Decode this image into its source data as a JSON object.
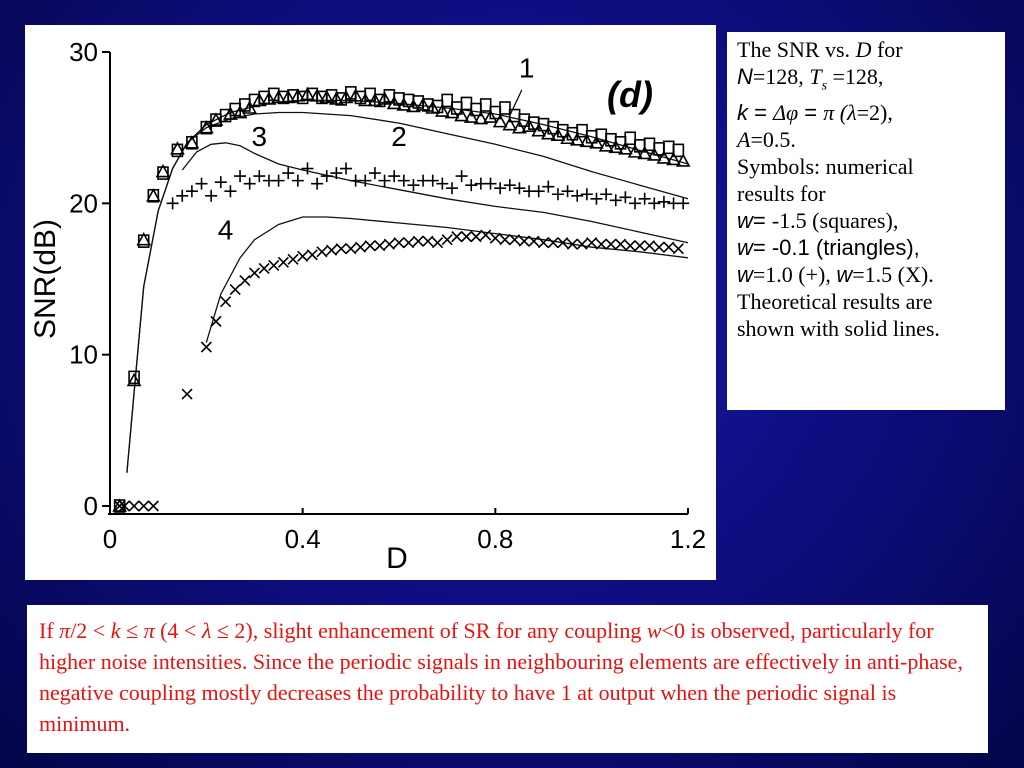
{
  "chart_data": {
    "type": "scatter",
    "panel_label": "(d)",
    "xlabel": "D",
    "ylabel": "SNR(dB)",
    "xlim": [
      0,
      1.2
    ],
    "ylim": [
      0,
      30
    ],
    "xticks": [
      "0",
      "0.4",
      "0.8",
      "1.2"
    ],
    "yticks": [
      "0",
      "10",
      "20",
      "30"
    ],
    "grid": false,
    "theory_lines": [
      {
        "name": "1",
        "x": [
          0.035,
          0.05,
          0.07,
          0.1,
          0.13,
          0.16,
          0.2,
          0.25,
          0.3,
          0.35,
          0.4,
          0.5,
          0.6,
          0.7,
          0.8,
          0.9,
          1.0,
          1.1,
          1.2
        ],
        "y": [
          2.2,
          7.5,
          14.5,
          19.5,
          22.3,
          24.0,
          25.2,
          26.0,
          26.4,
          26.7,
          26.8,
          26.8,
          26.6,
          26.3,
          25.9,
          25.2,
          24.4,
          23.5,
          22.6
        ]
      },
      {
        "name": "2",
        "x": [
          0.035,
          0.05,
          0.07,
          0.1,
          0.13,
          0.16,
          0.2,
          0.25,
          0.3,
          0.35,
          0.4,
          0.5,
          0.6,
          0.7,
          0.8,
          0.9,
          1.0,
          1.1,
          1.2
        ],
        "y": [
          2.2,
          7.5,
          14.5,
          19.5,
          22.3,
          24.0,
          25.0,
          25.6,
          25.9,
          26.0,
          26.0,
          25.8,
          25.3,
          24.6,
          23.9,
          23.1,
          22.1,
          21.2,
          20.3
        ]
      },
      {
        "name": "3",
        "x": [
          0.15,
          0.18,
          0.21,
          0.24,
          0.27,
          0.3,
          0.35,
          0.4,
          0.5,
          0.6,
          0.7,
          0.8,
          0.9,
          1.0,
          1.1,
          1.2
        ],
        "y": [
          22.2,
          23.4,
          23.9,
          24.0,
          23.8,
          23.3,
          22.6,
          22.2,
          21.5,
          20.9,
          20.3,
          19.8,
          19.4,
          18.8,
          18.1,
          17.4
        ]
      },
      {
        "name": "4",
        "x": [
          0.2,
          0.23,
          0.27,
          0.3,
          0.35,
          0.4,
          0.45,
          0.5,
          0.6,
          0.7,
          0.8,
          0.9,
          1.0,
          1.1,
          1.2
        ],
        "y": [
          10.8,
          14.0,
          16.4,
          17.6,
          18.6,
          19.1,
          19.1,
          19.0,
          18.7,
          18.4,
          18.0,
          17.6,
          17.1,
          16.8,
          16.4
        ]
      }
    ],
    "series": [
      {
        "name": "squares",
        "x": [
          0.02,
          0.05,
          0.07,
          0.09,
          0.11,
          0.14,
          0.17,
          0.2,
          0.22,
          0.24,
          0.26,
          0.28,
          0.3,
          0.32,
          0.34,
          0.36,
          0.38,
          0.4,
          0.42,
          0.44,
          0.46,
          0.48,
          0.5,
          0.52,
          0.54,
          0.56,
          0.58,
          0.6,
          0.62,
          0.64,
          0.66,
          0.68,
          0.7,
          0.72,
          0.74,
          0.76,
          0.78,
          0.8,
          0.82,
          0.84,
          0.86,
          0.88,
          0.9,
          0.92,
          0.94,
          0.96,
          0.98,
          1.0,
          1.02,
          1.04,
          1.06,
          1.08,
          1.1,
          1.12,
          1.14,
          1.16,
          1.18
        ],
        "y": [
          0,
          8.5,
          17.5,
          20.5,
          22,
          23.5,
          24,
          25,
          25.5,
          25.8,
          26.2,
          26.5,
          26.8,
          27,
          27.2,
          27,
          27.1,
          27,
          27.2,
          27,
          27.1,
          26.9,
          27.3,
          27,
          27.2,
          26.8,
          27.1,
          26.9,
          26.8,
          26.7,
          26.5,
          26.4,
          26.8,
          26.3,
          26.6,
          26.2,
          26.5,
          26,
          26.3,
          25.8,
          25.5,
          25.3,
          25.2,
          25.0,
          24.8,
          24.6,
          24.8,
          24.4,
          24.5,
          24.2,
          24.0,
          24.3,
          23.8,
          23.9,
          23.6,
          23.7,
          23.5
        ]
      },
      {
        "name": "triangles",
        "x": [
          0.02,
          0.05,
          0.07,
          0.09,
          0.11,
          0.14,
          0.17,
          0.2,
          0.22,
          0.25,
          0.27,
          0.29,
          0.31,
          0.33,
          0.35,
          0.37,
          0.39,
          0.41,
          0.43,
          0.45,
          0.47,
          0.49,
          0.51,
          0.53,
          0.55,
          0.57,
          0.59,
          0.61,
          0.63,
          0.65,
          0.67,
          0.69,
          0.71,
          0.73,
          0.75,
          0.77,
          0.79,
          0.81,
          0.83,
          0.85,
          0.87,
          0.89,
          0.91,
          0.93,
          0.95,
          0.97,
          0.99,
          1.01,
          1.03,
          1.05,
          1.07,
          1.09,
          1.11,
          1.13,
          1.15,
          1.17,
          1.19
        ],
        "y": [
          0,
          8.3,
          17.6,
          20.5,
          22.1,
          23.6,
          24,
          25,
          25.5,
          25.9,
          26,
          26.3,
          26.8,
          26.9,
          27,
          27,
          27.1,
          27.2,
          27.1,
          27,
          26.9,
          27,
          27.1,
          26.8,
          26.8,
          26.9,
          26.6,
          26.5,
          26.4,
          26.5,
          26.3,
          26.1,
          26,
          25.8,
          25.7,
          25.6,
          25.7,
          25.4,
          25.2,
          25,
          25.1,
          24.8,
          24.6,
          24.5,
          24.3,
          24.2,
          24.1,
          24.0,
          23.8,
          23.7,
          23.6,
          23.4,
          23.3,
          23.2,
          23.0,
          22.9,
          22.8
        ]
      },
      {
        "name": "plus",
        "x": [
          0.13,
          0.15,
          0.17,
          0.19,
          0.21,
          0.23,
          0.25,
          0.27,
          0.29,
          0.31,
          0.33,
          0.35,
          0.37,
          0.39,
          0.41,
          0.43,
          0.45,
          0.47,
          0.49,
          0.51,
          0.53,
          0.55,
          0.57,
          0.59,
          0.61,
          0.63,
          0.65,
          0.67,
          0.69,
          0.71,
          0.73,
          0.75,
          0.77,
          0.79,
          0.81,
          0.83,
          0.85,
          0.87,
          0.89,
          0.91,
          0.93,
          0.95,
          0.97,
          0.99,
          1.01,
          1.03,
          1.05,
          1.07,
          1.09,
          1.11,
          1.13,
          1.15,
          1.17,
          1.19
        ],
        "y": [
          20,
          20.5,
          20.8,
          21.3,
          20.5,
          21.4,
          20.8,
          21.8,
          21.3,
          21.8,
          21.5,
          21.5,
          22.0,
          21.5,
          22.3,
          21.3,
          21.8,
          22.0,
          22.3,
          21.5,
          21.5,
          22.0,
          21.5,
          21.8,
          21.5,
          21.2,
          21.5,
          21.5,
          21.3,
          21.0,
          21.8,
          21.2,
          21.3,
          21.3,
          21.0,
          21.2,
          21.0,
          20.8,
          20.8,
          21.1,
          20.6,
          20.8,
          20.5,
          20.6,
          20.3,
          20.6,
          20.2,
          20.4,
          20.0,
          20.3,
          20.0,
          20.1,
          20.0,
          20.0
        ]
      },
      {
        "name": "X",
        "x": [
          0.02,
          0.03,
          0.05,
          0.07,
          0.09,
          0.16,
          0.2,
          0.22,
          0.24,
          0.26,
          0.28,
          0.3,
          0.32,
          0.34,
          0.36,
          0.38,
          0.4,
          0.42,
          0.44,
          0.46,
          0.48,
          0.5,
          0.52,
          0.54,
          0.56,
          0.58,
          0.6,
          0.62,
          0.64,
          0.66,
          0.68,
          0.7,
          0.72,
          0.74,
          0.76,
          0.78,
          0.8,
          0.82,
          0.84,
          0.86,
          0.88,
          0.9,
          0.92,
          0.94,
          0.96,
          0.98,
          1.0,
          1.02,
          1.04,
          1.06,
          1.08,
          1.1,
          1.12,
          1.14,
          1.16,
          1.18
        ],
        "y": [
          0,
          0,
          0,
          0,
          0,
          7.4,
          10.5,
          12.2,
          13.5,
          14.3,
          14.9,
          15.4,
          15.7,
          15.9,
          16.1,
          16.3,
          16.5,
          16.6,
          16.8,
          16.9,
          17.0,
          17.0,
          17.1,
          17.2,
          17.2,
          17.3,
          17.4,
          17.4,
          17.5,
          17.5,
          17.4,
          17.6,
          17.8,
          17.8,
          17.8,
          17.9,
          17.7,
          17.6,
          17.6,
          17.5,
          17.5,
          17.4,
          17.4,
          17.4,
          17.3,
          17.3,
          17.4,
          17.3,
          17.3,
          17.3,
          17.2,
          17.2,
          17.2,
          17.1,
          17.1,
          17.0
        ]
      }
    ]
  },
  "legend_text": {
    "l1a": "The SNR vs. ",
    "l1b": "D",
    "l1c": " for",
    "l2a": "N",
    "l2b": "=128, ",
    "l2c": "T",
    "l2d": "s",
    "l2e": " =128,",
    "l3a": "k",
    "l3b": " = ",
    "l3c": "Δφ",
    "l3d": " = ",
    "l3e": " π  (",
    "l3f": "λ",
    "l3g": "=2),",
    "l4a": "A",
    "l4b": "=0.5.",
    "l5": "Symbols: numerical",
    "l6": "results for",
    "l7a": "w",
    "l7b": "= ",
    "l7c": "-1.5 (squares),",
    "l8a": "w",
    "l8b": "= -0.1 (triangles),",
    "l9a": "w",
    "l9b": "=1.0 (+),  ",
    "l9c": "w",
    "l9d": "=1.5 (X).",
    "l10": "Theoretical results are",
    "l11": "shown with solid lines."
  },
  "caption": {
    "c1": "If ",
    "c2": "π",
    "c3": "/2 < ",
    "c4": "k",
    "c5": " ≤ ",
    "c6": "π",
    "c7": " (4 < ",
    "c8": "λ",
    "c9": " ≤ 2), slight enhancement of SR for any coupling ",
    "c10": "w",
    "c11": "<0 is observed, particularly for higher noise intensities. Since the periodic signals in neighbouring elements are effectively in anti-phase, negative coupling mostly decreases the probability to have 1 at output when the periodic signal is minimum."
  }
}
